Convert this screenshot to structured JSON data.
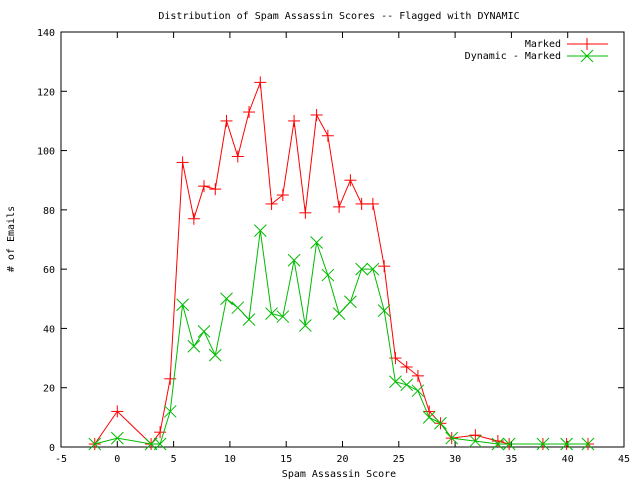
{
  "chart_data": {
    "type": "line",
    "title": "Distribution of Spam Assassin Scores -- Flagged with DYNAMIC",
    "xlabel": "Spam Assassin Score",
    "ylabel": "# of Emails",
    "xlim": [
      -5,
      45
    ],
    "ylim": [
      0,
      140
    ],
    "xticks": [
      -5,
      0,
      5,
      10,
      15,
      20,
      25,
      30,
      35,
      40,
      45
    ],
    "yticks": [
      0,
      20,
      40,
      60,
      80,
      100,
      120,
      140
    ],
    "grid": false,
    "legend_position": "top-right",
    "series": [
      {
        "name": "Marked",
        "color": "#ff0000",
        "marker": "plus",
        "x": [
          -2,
          0,
          3,
          3.8,
          4.7,
          5.8,
          6.8,
          7.7,
          8.7,
          9.7,
          10.7,
          11.7,
          12.7,
          13.7,
          14.7,
          15.7,
          16.7,
          17.7,
          18.7,
          19.7,
          20.7,
          21.7,
          22.7,
          23.7,
          24.7,
          25.7,
          26.7,
          27.7,
          28.7,
          29.7,
          31.8,
          33.8,
          34.8,
          37.8,
          39.9,
          41.8
        ],
        "y": [
          1,
          12,
          1,
          5,
          23,
          96,
          77,
          88,
          87,
          110,
          98,
          113,
          123,
          82,
          85,
          110,
          79,
          112,
          105,
          81,
          90,
          82,
          82,
          61,
          30,
          27,
          24,
          12,
          8,
          3,
          4,
          2,
          1,
          1,
          1,
          1
        ]
      },
      {
        "name": "Dynamic - Marked",
        "color": "#00bb00",
        "marker": "cross",
        "x": [
          -2,
          0,
          3,
          3.8,
          4.7,
          5.8,
          6.8,
          7.7,
          8.7,
          9.7,
          10.7,
          11.7,
          12.7,
          13.7,
          14.7,
          15.7,
          16.7,
          17.7,
          18.7,
          19.7,
          20.7,
          21.7,
          22.7,
          23.7,
          24.7,
          25.7,
          26.7,
          27.7,
          28.7,
          29.7,
          31.8,
          33.8,
          34.8,
          37.8,
          39.9,
          41.8
        ],
        "y": [
          1,
          3,
          1,
          1,
          12,
          48,
          34,
          39,
          31,
          50,
          47,
          43,
          73,
          45,
          44,
          63,
          41,
          69,
          58,
          45,
          49,
          60,
          60,
          46,
          22,
          21,
          19,
          10,
          8,
          3,
          2,
          1,
          1,
          1,
          1,
          1
        ]
      }
    ]
  }
}
